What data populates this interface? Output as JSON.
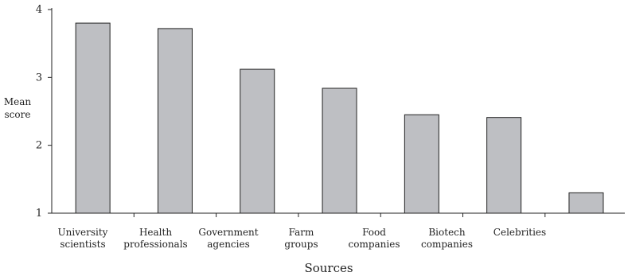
{
  "chart_data": {
    "type": "bar",
    "x_label": "Sources",
    "y_label": [
      "Mean",
      "score"
    ],
    "categories": [
      [
        "University",
        "scientists"
      ],
      [
        "Health",
        "professionals"
      ],
      [
        "Government",
        "agencies"
      ],
      [
        "Farm",
        "groups"
      ],
      [
        "Food",
        "companies"
      ],
      [
        "Biotech",
        "companies"
      ],
      [
        "Celebrities"
      ]
    ],
    "values": [
      3.8,
      3.72,
      3.12,
      2.84,
      2.45,
      2.41,
      1.3
    ],
    "color": "#bebfc3",
    "ylim": [
      1,
      4
    ],
    "yticks": [
      1,
      2,
      3,
      4
    ],
    "grid": false
  }
}
